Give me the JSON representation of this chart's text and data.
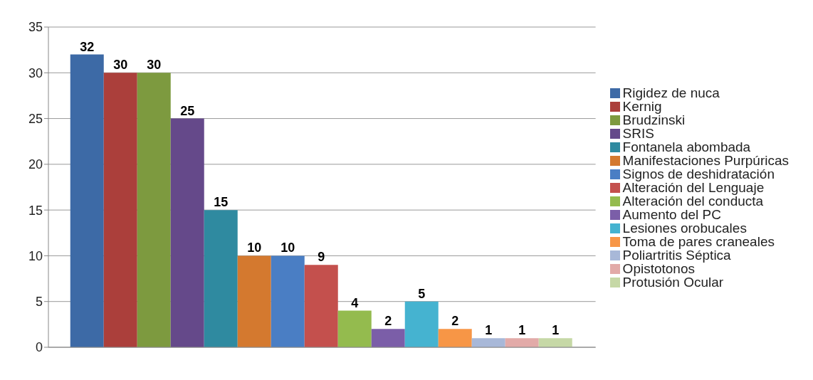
{
  "chart_data": {
    "type": "bar",
    "categories": [
      null
    ],
    "ylim": [
      0,
      35
    ],
    "yticks": [
      0,
      5,
      10,
      15,
      20,
      25,
      30,
      35
    ],
    "grid": "y",
    "legend": "right",
    "data_labels": true,
    "tick_labels": "y",
    "series": [
      {
        "name": "Rigidez de nuca",
        "color": "#3d6aa6",
        "values": [
          32
        ]
      },
      {
        "name": "Kernig",
        "color": "#ab3f3b",
        "values": [
          30
        ]
      },
      {
        "name": "Brudzinski",
        "color": "#7d9a3f",
        "values": [
          30
        ]
      },
      {
        "name": "SRIS",
        "color": "#65498a",
        "values": [
          25
        ]
      },
      {
        "name": "Fontanela abombada",
        "color": "#2f8aa0",
        "values": [
          15
        ]
      },
      {
        "name": "Manifestaciones Purpúricas",
        "color": "#d4792f",
        "values": [
          10
        ]
      },
      {
        "name": "Signos de deshidratación",
        "color": "#4a7ec4",
        "values": [
          10
        ]
      },
      {
        "name": "Alteración del Lenguaje",
        "color": "#c4504d",
        "values": [
          9
        ]
      },
      {
        "name": "Alteración del conducta",
        "color": "#94bb4e",
        "values": [
          4
        ]
      },
      {
        "name": "Aumento del PC",
        "color": "#7b5ea8",
        "values": [
          2
        ]
      },
      {
        "name": "Lesiones orobucales",
        "color": "#45b3d0",
        "values": [
          5
        ]
      },
      {
        "name": "Toma de pares craneales",
        "color": "#f79646",
        "values": [
          2
        ]
      },
      {
        "name": "Poliartritis Séptica",
        "color": "#a8b8d8",
        "values": [
          1
        ]
      },
      {
        "name": "Opistotonos",
        "color": "#e2aaa8",
        "values": [
          1
        ]
      },
      {
        "name": "Protusión Ocular",
        "color": "#c6d8a6",
        "values": [
          1
        ]
      }
    ]
  }
}
